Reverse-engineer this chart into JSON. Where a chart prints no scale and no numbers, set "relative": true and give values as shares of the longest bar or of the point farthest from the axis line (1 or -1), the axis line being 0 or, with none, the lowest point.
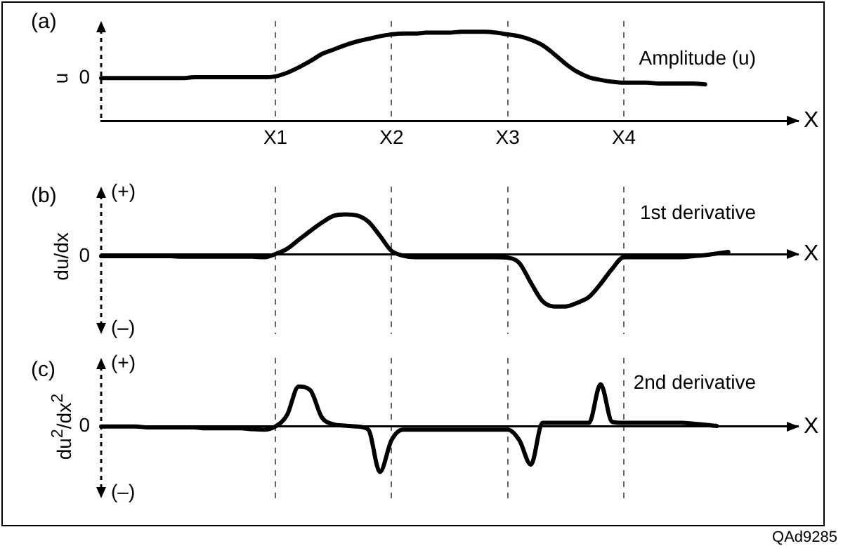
{
  "chart_data": [
    {
      "type": "line",
      "title": "(a)",
      "ylabel": "u",
      "xlabel": "X",
      "relative": true,
      "grid": "x",
      "categories": [
        null,
        null,
        null,
        null,
        null,
        null,
        null,
        null,
        null,
        null,
        null,
        null,
        null,
        null,
        null,
        "X1",
        null,
        null,
        null,
        null,
        null,
        null,
        null,
        null,
        null,
        "X2",
        null,
        null,
        null,
        null,
        null,
        null,
        null,
        null,
        null,
        "X3",
        null,
        null,
        null,
        null,
        null,
        null,
        null,
        null,
        null,
        "X4",
        null,
        null,
        null,
        null,
        null,
        null,
        null,
        null,
        null,
        null,
        null,
        null,
        null,
        null,
        null
      ],
      "series": [
        {
          "name": "Amplitude (u)",
          "color": "#000000",
          "values": [
            0.48,
            0.48,
            0.48,
            0.48,
            0.48,
            0.48,
            0.48,
            0.48,
            0.49,
            0.49,
            0.49,
            0.49,
            0.49,
            0.49,
            0.49,
            0.5,
            0.54,
            0.6,
            0.67,
            0.75,
            0.8,
            0.85,
            0.89,
            0.92,
            0.95,
            0.97,
            0.98,
            0.98,
            0.99,
            0.99,
            0.99,
            1,
            1,
            1,
            0.99,
            0.97,
            0.95,
            0.91,
            0.85,
            0.75,
            0.64,
            0.55,
            0.49,
            0.46,
            0.44,
            0.43,
            0.43,
            0.43,
            0.42,
            0.42,
            0.42,
            0.42,
            0.41,
            null,
            null,
            null,
            null,
            null,
            null,
            null,
            null
          ]
        }
      ],
      "annotations": [
        "0"
      ]
    },
    {
      "type": "line",
      "title": "(b)",
      "ylabel": "du/dx",
      "xlabel": "X",
      "relative": true,
      "grid": "x",
      "categories": [
        null,
        null,
        null,
        null,
        null,
        null,
        null,
        null,
        null,
        null,
        null,
        null,
        null,
        null,
        null,
        null,
        null,
        null,
        null,
        null,
        null,
        null,
        null,
        null,
        null,
        null,
        null,
        null,
        null,
        null,
        null,
        null,
        null,
        null,
        null,
        null,
        null,
        null,
        null,
        null,
        null,
        null,
        null,
        null,
        null,
        null,
        null,
        null,
        null,
        null,
        null,
        null,
        null,
        null,
        null,
        null,
        null,
        null,
        null,
        null,
        null
      ],
      "series": [
        {
          "name": "1st derivative",
          "color": "#000000",
          "values": [
            -0.04,
            -0.04,
            -0.04,
            -0.04,
            -0.04,
            -0.04,
            -0.04,
            -0.05,
            -0.05,
            -0.05,
            -0.05,
            -0.05,
            -0.05,
            -0.05,
            -0.06,
            0,
            0.1,
            0.27,
            0.44,
            0.6,
            0.73,
            0.76,
            0.74,
            0.62,
            0.35,
            0.06,
            -0.03,
            -0.06,
            -0.06,
            -0.06,
            -0.06,
            -0.06,
            -0.06,
            -0.06,
            -0.06,
            -0.07,
            -0.17,
            -0.55,
            -0.9,
            -1,
            -1,
            -0.93,
            -0.82,
            -0.57,
            -0.28,
            -0.06,
            -0.06,
            -0.06,
            -0.06,
            -0.06,
            -0.06,
            -0.04,
            -0.02,
            0.01,
            0.04,
            null,
            null,
            null,
            null,
            null,
            null
          ]
        }
      ],
      "annotations": [
        "0",
        "(+)",
        "(–)"
      ]
    },
    {
      "type": "line",
      "title": "(c)",
      "ylabel": "du$^{2}$/dx$^{2}$",
      "xlabel": "X",
      "relative": true,
      "grid": "x",
      "categories": [
        null,
        null,
        null,
        null,
        null,
        null,
        null,
        null,
        null,
        null,
        null,
        null,
        null,
        null,
        null,
        null,
        null,
        null,
        null,
        null,
        null,
        null,
        null,
        null,
        null,
        null,
        null,
        null,
        null,
        null,
        null,
        null,
        null,
        null,
        null,
        null,
        null,
        null,
        null,
        null,
        null,
        null,
        null,
        null,
        null,
        null,
        null,
        null,
        null,
        null,
        null,
        null,
        null,
        null,
        null,
        null,
        null,
        null,
        null,
        null,
        null
      ],
      "series": [
        {
          "name": "2nd derivative",
          "color": "#000000",
          "values": [
            0,
            0,
            0,
            0,
            -0.02,
            -0.02,
            -0.02,
            -0.02,
            -0.02,
            -0.04,
            -0.04,
            -0.04,
            -0.04,
            -0.06,
            -0.07,
            0,
            0.25,
            0.88,
            0.8,
            0.2,
            0.05,
            0.02,
            0,
            -0.07,
            -1,
            -0.3,
            -0.07,
            -0.07,
            -0.07,
            -0.07,
            -0.07,
            -0.07,
            -0.07,
            -0.07,
            -0.07,
            -0.07,
            -0.3,
            -0.84,
            0.08,
            0.08,
            0.08,
            0.08,
            0.08,
            0.93,
            0.1,
            0.08,
            0.08,
            0.08,
            0.08,
            0.08,
            0.08,
            0.06,
            0.04,
            0.01,
            null,
            null,
            null,
            null,
            null,
            null,
            null
          ]
        }
      ],
      "annotations": [
        "0",
        "(+)",
        "(–)",
        "QAd9285"
      ]
    }
  ]
}
